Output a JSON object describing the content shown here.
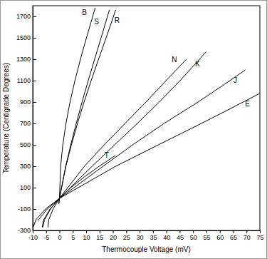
{
  "chart_data": {
    "type": "line",
    "x_label": "Thermocouple Voltage (mV)",
    "y_label": "Temperature (Centigrade Degrees)",
    "color": "#000000",
    "grid": false,
    "xlim": [
      -10,
      75
    ],
    "xticks": [
      -10,
      -5,
      0,
      5,
      10,
      15,
      20,
      25,
      30,
      35,
      40,
      45,
      50,
      55,
      60,
      65,
      70,
      75
    ],
    "ylim": [
      -300,
      1800
    ],
    "yticks": [
      -300,
      -100,
      100,
      300,
      500,
      700,
      900,
      1100,
      1300,
      1500,
      1700
    ],
    "series": [
      {
        "name": "B",
        "x": [
          0,
          0.431,
          1.242,
          2.431,
          3.957,
          5.78,
          7.848,
          10.099,
          12.433,
          13.36
        ],
        "values": [
          0,
          300,
          500,
          700,
          900,
          1100,
          1300,
          1500,
          1700,
          1780
        ]
      },
      {
        "name": "S",
        "x": [
          -0.236,
          0,
          2.323,
          4.233,
          6.275,
          8.449,
          10.757,
          13.155,
          15.582,
          17.947,
          18.69
        ],
        "values": [
          -50,
          0,
          300,
          500,
          700,
          900,
          1100,
          1300,
          1500,
          1700,
          1760
        ]
      },
      {
        "name": "R",
        "x": [
          -0.226,
          0,
          2.401,
          4.471,
          6.741,
          9.205,
          11.85,
          14.629,
          17.451,
          20.222,
          21.0
        ],
        "values": [
          -50,
          0,
          300,
          500,
          700,
          900,
          1100,
          1300,
          1500,
          1700,
          1760
        ]
      },
      {
        "name": "N",
        "x": [
          -4.345,
          -3.99,
          -2.407,
          0,
          9.341,
          16.748,
          24.527,
          32.371,
          39.897,
          47.513
        ],
        "values": [
          -270,
          -200,
          -100,
          0,
          300,
          500,
          700,
          900,
          1100,
          1300
        ]
      },
      {
        "name": "K",
        "x": [
          -6.458,
          -5.891,
          -3.554,
          0,
          12.209,
          20.644,
          29.129,
          37.326,
          45.119,
          52.41,
          54.819
        ],
        "values": [
          -270,
          -200,
          -100,
          0,
          300,
          500,
          700,
          900,
          1100,
          1300,
          1370
        ]
      },
      {
        "name": "J",
        "x": [
          -8.095,
          -4.633,
          0,
          16.327,
          27.393,
          39.132,
          51.877,
          63.792,
          69.553
        ],
        "values": [
          -210,
          -100,
          0,
          300,
          500,
          700,
          900,
          1100,
          1200
        ]
      },
      {
        "name": "E",
        "x": [
          -9.835,
          -8.825,
          -5.237,
          0,
          21.036,
          36.999,
          53.11,
          68.787,
          74.9
        ],
        "values": [
          -270,
          -200,
          -100,
          0,
          300,
          500,
          700,
          900,
          980
        ]
      },
      {
        "name": "T",
        "x": [
          -6.258,
          -5.603,
          -3.379,
          0,
          4.279,
          9.288,
          14.862,
          20.872
        ],
        "values": [
          -270,
          -200,
          -100,
          0,
          100,
          200,
          300,
          400
        ]
      }
    ]
  }
}
